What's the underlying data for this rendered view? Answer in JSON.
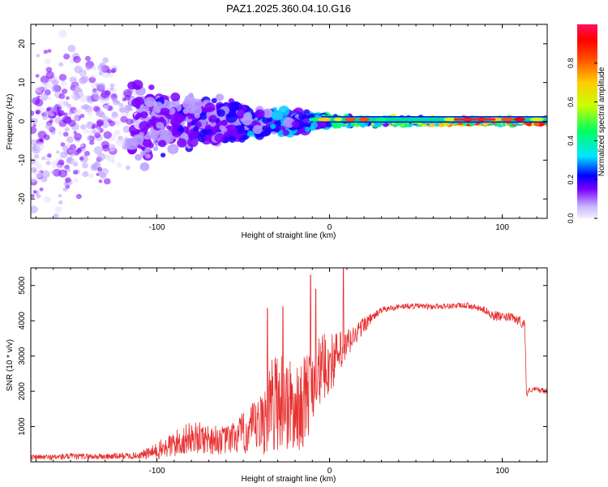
{
  "title": "PAZ1.2025.360.04.10.G16",
  "chart_data": [
    {
      "type": "heatmap",
      "xlabel": "Height of straight line (km)",
      "ylabel": "Frequency (Hz)",
      "xlim": [
        -173,
        126
      ],
      "ylim": [
        -25,
        25
      ],
      "xticks": [
        -100,
        0,
        100
      ],
      "xtick_labels": [
        "-100",
        "0",
        "100"
      ],
      "yticks": [
        -20,
        -10,
        0,
        10,
        20
      ],
      "ytick_labels": [
        "-20",
        "-10",
        "0",
        "10",
        "20"
      ],
      "colorbar": {
        "label": "Normalized spectral amplitude",
        "range": [
          0,
          1
        ],
        "ticks": [
          0,
          0.2,
          0.4,
          0.6,
          0.8
        ],
        "tick_labels": [
          "0.0",
          "0.2",
          "0.4",
          "0.6",
          "0.8"
        ],
        "colormap": [
          "#c9b8ff",
          "#7b00ff",
          "#0000ff",
          "#00e5ff",
          "#00ff40",
          "#ffff00",
          "#ff8000",
          "#ff0000",
          "#ff1060"
        ]
      },
      "description_points": [
        {
          "x": -150,
          "freq_spread": 25,
          "amplitude": 0.15
        },
        {
          "x": -100,
          "freq_spread": 8,
          "amplitude": 0.2
        },
        {
          "x": -60,
          "freq_spread": 7,
          "amplitude": 0.25
        },
        {
          "x": -30,
          "freq_spread": 4,
          "amplitude": 0.3
        },
        {
          "x": 0,
          "freq_spread": 1.5,
          "amplitude": 0.5
        },
        {
          "x": 50,
          "freq_spread": 1,
          "amplitude": 0.6
        },
        {
          "x": 85,
          "freq_spread": 1,
          "amplitude": 0.9
        },
        {
          "x": 110,
          "freq_spread": 1,
          "amplitude": 0.85
        }
      ]
    },
    {
      "type": "line",
      "xlabel": "Height of straight line (km)",
      "ylabel": "SNR (10 * v/v)",
      "xlim": [
        -173,
        126
      ],
      "ylim": [
        0,
        5500
      ],
      "xticks": [
        -100,
        0,
        100
      ],
      "xtick_labels": [
        "-100",
        "0",
        "100"
      ],
      "yticks": [
        1000,
        2000,
        3000,
        4000,
        5000
      ],
      "ytick_labels": [
        "1000",
        "2000",
        "3000",
        "4000",
        "5000"
      ],
      "color": "#e83030",
      "series": [
        {
          "name": "SNR",
          "x": [
            -173,
            -150,
            -130,
            -110,
            -100,
            -90,
            -80,
            -70,
            -60,
            -50,
            -40,
            -35,
            -30,
            -25,
            -20,
            -15,
            -10,
            -5,
            0,
            5,
            10,
            15,
            20,
            25,
            30,
            40,
            50,
            60,
            70,
            80,
            90,
            95,
            100,
            105,
            110,
            113,
            114,
            116,
            120,
            126
          ],
          "values": [
            120,
            150,
            150,
            180,
            300,
            500,
            700,
            650,
            600,
            800,
            1000,
            1500,
            1800,
            1700,
            1400,
            1700,
            2200,
            2600,
            2800,
            3000,
            3300,
            3600,
            3900,
            4100,
            4300,
            4400,
            4420,
            4400,
            4420,
            4430,
            4300,
            4150,
            4100,
            4100,
            4000,
            3900,
            1900,
            2050,
            2050,
            2000
          ],
          "noise": [
            80,
            90,
            90,
            100,
            250,
            400,
            450,
            450,
            400,
            600,
            900,
            1300,
            1500,
            1500,
            1200,
            1300,
            1200,
            1000,
            900,
            700,
            500,
            300,
            250,
            120,
            100,
            80,
            80,
            80,
            80,
            80,
            100,
            150,
            120,
            120,
            150,
            150,
            80,
            80,
            80,
            80
          ]
        }
      ],
      "spikes": [
        {
          "x": -11,
          "value": 5300
        },
        {
          "x": -8,
          "value": 4900
        },
        {
          "x": 8,
          "value": 5500
        },
        {
          "x": -36,
          "value": 4350
        },
        {
          "x": -27,
          "value": 4400
        }
      ]
    }
  ]
}
